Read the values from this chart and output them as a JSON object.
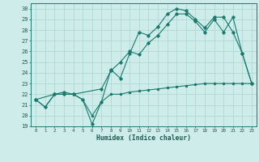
{
  "xlabel": "Humidex (Indice chaleur)",
  "background_color": "#ceecea",
  "line_color": "#1a7a6e",
  "grid_color": "#aad4ce",
  "xlim": [
    -0.5,
    23.5
  ],
  "ylim": [
    19,
    30.5
  ],
  "yticks": [
    19,
    20,
    21,
    22,
    23,
    24,
    25,
    26,
    27,
    28,
    29,
    30
  ],
  "xticks": [
    0,
    1,
    2,
    3,
    4,
    5,
    6,
    7,
    8,
    9,
    10,
    11,
    12,
    13,
    14,
    15,
    16,
    17,
    18,
    19,
    20,
    21,
    22,
    23
  ],
  "series1_x": [
    0,
    1,
    2,
    3,
    4,
    5,
    6,
    7,
    8,
    9,
    10,
    11,
    12,
    13,
    14,
    15,
    16,
    17,
    18,
    19,
    20,
    21,
    22,
    23
  ],
  "series1_y": [
    21.5,
    20.8,
    22.0,
    22.0,
    22.0,
    21.5,
    20.0,
    21.3,
    22.0,
    22.0,
    22.2,
    22.3,
    22.4,
    22.5,
    22.6,
    22.7,
    22.8,
    22.9,
    23.0,
    23.0,
    23.0,
    23.0,
    23.0,
    23.0
  ],
  "series2_x": [
    0,
    1,
    2,
    3,
    4,
    5,
    6,
    7,
    8,
    9,
    10,
    11,
    12,
    13,
    14,
    15,
    16,
    17,
    18,
    19,
    20,
    21,
    22,
    23
  ],
  "series2_y": [
    21.5,
    20.8,
    22.0,
    22.0,
    22.0,
    21.5,
    19.2,
    21.3,
    24.3,
    23.5,
    25.8,
    27.8,
    27.5,
    28.3,
    29.5,
    30.0,
    29.8,
    29.0,
    28.2,
    29.2,
    29.2,
    27.8,
    25.8,
    23.0
  ],
  "series3_x": [
    0,
    2,
    3,
    4,
    7,
    8,
    9,
    10,
    11,
    12,
    13,
    14,
    15,
    16,
    17,
    18,
    19,
    20,
    21,
    22,
    23
  ],
  "series3_y": [
    21.5,
    22.0,
    22.2,
    22.0,
    22.5,
    24.2,
    25.0,
    26.0,
    25.7,
    26.8,
    27.5,
    28.5,
    29.5,
    29.5,
    28.8,
    27.8,
    29.0,
    27.8,
    29.2,
    25.8,
    23.0
  ]
}
